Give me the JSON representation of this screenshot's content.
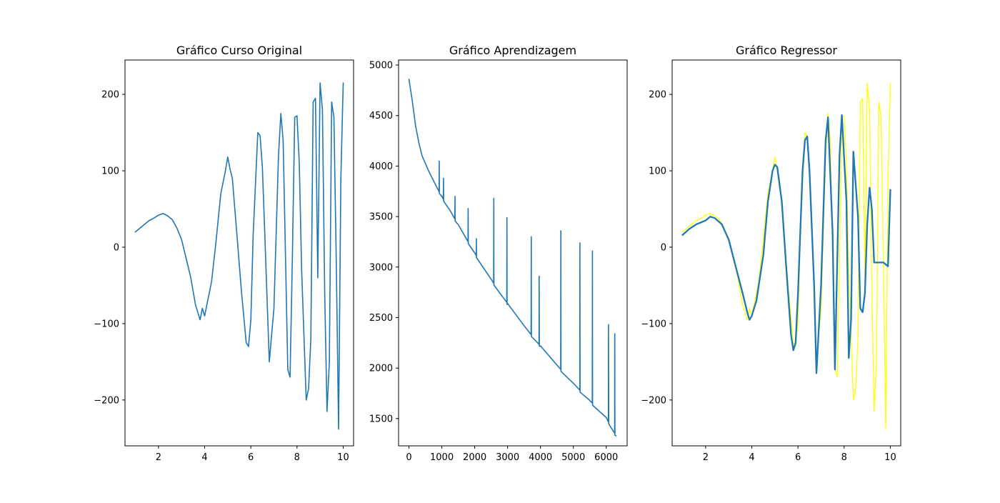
{
  "chart_data": [
    {
      "type": "line",
      "title": "Gráfico Curso Original",
      "xlabel": "",
      "ylabel": "",
      "xlim": [
        0.55,
        10.45
      ],
      "ylim": [
        -260,
        245
      ],
      "xticks": [
        2,
        4,
        6,
        8,
        10
      ],
      "yticks": [
        -200,
        -100,
        0,
        100,
        200
      ],
      "xtick_labels": [
        "2",
        "4",
        "6",
        "8",
        "10"
      ],
      "ytick_labels": [
        "−200",
        "−100",
        "0",
        "100",
        "200"
      ],
      "grid": false,
      "series": [
        {
          "color": "#1f77b4",
          "x": [
            1.0,
            1.2,
            1.4,
            1.6,
            1.8,
            2.0,
            2.2,
            2.4,
            2.6,
            2.8,
            3.0,
            3.2,
            3.4,
            3.6,
            3.8,
            3.9,
            4.0,
            4.1,
            4.3,
            4.5,
            4.7,
            4.9,
            5.0,
            5.1,
            5.2,
            5.4,
            5.6,
            5.8,
            5.9,
            6.0,
            6.1,
            6.3,
            6.4,
            6.5,
            6.6,
            6.8,
            7.0,
            7.2,
            7.3,
            7.4,
            7.6,
            7.7,
            7.8,
            7.9,
            8.0,
            8.1,
            8.2,
            8.4,
            8.5,
            8.6,
            8.7,
            8.8,
            8.9,
            9.0,
            9.1,
            9.2,
            9.3,
            9.4,
            9.5,
            9.6,
            9.7,
            9.8,
            9.9,
            10.0
          ],
          "y": [
            20,
            25,
            30,
            35,
            38,
            42,
            44,
            41,
            36,
            25,
            10,
            -15,
            -40,
            -75,
            -95,
            -80,
            -90,
            -75,
            -45,
            10,
            70,
            100,
            118,
            102,
            90,
            15,
            -60,
            -125,
            -130,
            -95,
            15,
            150,
            146,
            105,
            20,
            -150,
            -80,
            120,
            175,
            140,
            -160,
            -170,
            -15,
            170,
            172,
            110,
            -30,
            -200,
            -185,
            -120,
            190,
            195,
            -40,
            215,
            180,
            -60,
            -215,
            -150,
            190,
            170,
            -20,
            -238,
            90,
            215
          ]
        }
      ]
    },
    {
      "type": "line",
      "title": "Gráfico Aprendizagem",
      "xlabel": "",
      "ylabel": "",
      "xlim": [
        -316,
        6636
      ],
      "ylim": [
        1230,
        5050
      ],
      "xticks": [
        0,
        1000,
        2000,
        3000,
        4000,
        5000,
        6000
      ],
      "yticks": [
        1500,
        2000,
        2500,
        3000,
        3500,
        4000,
        4500,
        5000
      ],
      "xtick_labels": [
        "0",
        "1000",
        "2000",
        "3000",
        "4000",
        "5000",
        "6000"
      ],
      "ytick_labels": [
        "1500",
        "2000",
        "2500",
        "3000",
        "3500",
        "4000",
        "4500",
        "5000"
      ],
      "grid": false,
      "series": [
        {
          "color": "#1f77b4",
          "x": [
            0,
            100,
            200,
            300,
            400,
            600,
            800,
            1000,
            1250,
            1500,
            2000,
            2500,
            3000,
            3500,
            4000,
            4500,
            5000,
            5500,
            6000,
            6300
          ],
          "y": [
            4860,
            4650,
            4400,
            4230,
            4100,
            3950,
            3820,
            3700,
            3560,
            3420,
            3140,
            2880,
            2640,
            2420,
            2220,
            2030,
            1850,
            1680,
            1510,
            1330
          ],
          "spikes": [
            {
              "x": 920,
              "y": 4050
            },
            {
              "x": 1050,
              "y": 3880
            },
            {
              "x": 1400,
              "y": 3700
            },
            {
              "x": 1800,
              "y": 3580
            },
            {
              "x": 2050,
              "y": 3280
            },
            {
              "x": 2580,
              "y": 3680
            },
            {
              "x": 2980,
              "y": 3490
            },
            {
              "x": 3720,
              "y": 3300
            },
            {
              "x": 3960,
              "y": 2910
            },
            {
              "x": 4620,
              "y": 3360
            },
            {
              "x": 5200,
              "y": 3240
            },
            {
              "x": 5580,
              "y": 3160
            },
            {
              "x": 6070,
              "y": 2430
            },
            {
              "x": 6260,
              "y": 2340
            }
          ]
        }
      ]
    },
    {
      "type": "line",
      "title": "Gráfico Regressor",
      "xlabel": "",
      "ylabel": "",
      "xlim": [
        0.55,
        10.45
      ],
      "ylim": [
        -260,
        245
      ],
      "xticks": [
        2,
        4,
        6,
        8,
        10
      ],
      "yticks": [
        -200,
        -100,
        0,
        100,
        200
      ],
      "xtick_labels": [
        "2",
        "4",
        "6",
        "8",
        "10"
      ],
      "ytick_labels": [
        "−200",
        "−100",
        "0",
        "100",
        "200"
      ],
      "grid": false,
      "series": [
        {
          "color": "#ffff00",
          "x": [
            1.0,
            1.2,
            1.4,
            1.6,
            1.8,
            2.0,
            2.2,
            2.4,
            2.6,
            2.8,
            3.0,
            3.2,
            3.4,
            3.6,
            3.8,
            3.9,
            4.0,
            4.1,
            4.3,
            4.5,
            4.7,
            4.9,
            5.0,
            5.1,
            5.2,
            5.4,
            5.6,
            5.8,
            5.9,
            6.0,
            6.1,
            6.3,
            6.4,
            6.5,
            6.6,
            6.8,
            7.0,
            7.2,
            7.3,
            7.4,
            7.6,
            7.7,
            7.8,
            7.9,
            8.0,
            8.1,
            8.2,
            8.4,
            8.5,
            8.6,
            8.7,
            8.8,
            8.9,
            9.0,
            9.1,
            9.2,
            9.3,
            9.4,
            9.5,
            9.6,
            9.7,
            9.8,
            9.9,
            10.0
          ],
          "y": [
            20,
            25,
            30,
            35,
            38,
            42,
            44,
            41,
            36,
            25,
            10,
            -15,
            -40,
            -75,
            -95,
            -80,
            -90,
            -75,
            -45,
            10,
            70,
            100,
            118,
            102,
            90,
            15,
            -60,
            -125,
            -130,
            -95,
            15,
            150,
            146,
            105,
            20,
            -150,
            -80,
            120,
            175,
            140,
            -160,
            -170,
            -15,
            170,
            172,
            110,
            -30,
            -200,
            -185,
            -120,
            190,
            195,
            -40,
            215,
            180,
            -60,
            -215,
            -150,
            190,
            170,
            -20,
            -238,
            90,
            215
          ]
        },
        {
          "color": "#1f77b4",
          "x": [
            1.0,
            1.3,
            1.6,
            2.0,
            2.2,
            2.4,
            2.7,
            3.0,
            3.3,
            3.6,
            3.8,
            3.9,
            4.0,
            4.2,
            4.5,
            4.7,
            4.9,
            5.0,
            5.1,
            5.3,
            5.5,
            5.7,
            5.8,
            5.9,
            6.0,
            6.2,
            6.3,
            6.4,
            6.5,
            6.7,
            6.8,
            7.0,
            7.2,
            7.3,
            7.5,
            7.6,
            7.8,
            7.9,
            8.1,
            8.2,
            8.3,
            8.4,
            8.6,
            8.7,
            8.8,
            8.9,
            9.0,
            9.1,
            9.2,
            9.3,
            9.5,
            9.7,
            9.9,
            10.0
          ],
          "y": [
            16,
            24,
            30,
            35,
            40,
            38,
            30,
            10,
            -25,
            -60,
            -85,
            -95,
            -90,
            -70,
            -10,
            60,
            100,
            108,
            105,
            60,
            -30,
            -115,
            -135,
            -125,
            -60,
            100,
            140,
            145,
            100,
            -50,
            -165,
            -50,
            140,
            170,
            20,
            -160,
            120,
            173,
            60,
            -145,
            -95,
            125,
            40,
            -80,
            -85,
            -60,
            30,
            78,
            50,
            -20,
            -20,
            -20,
            -25,
            75
          ]
        }
      ]
    }
  ]
}
